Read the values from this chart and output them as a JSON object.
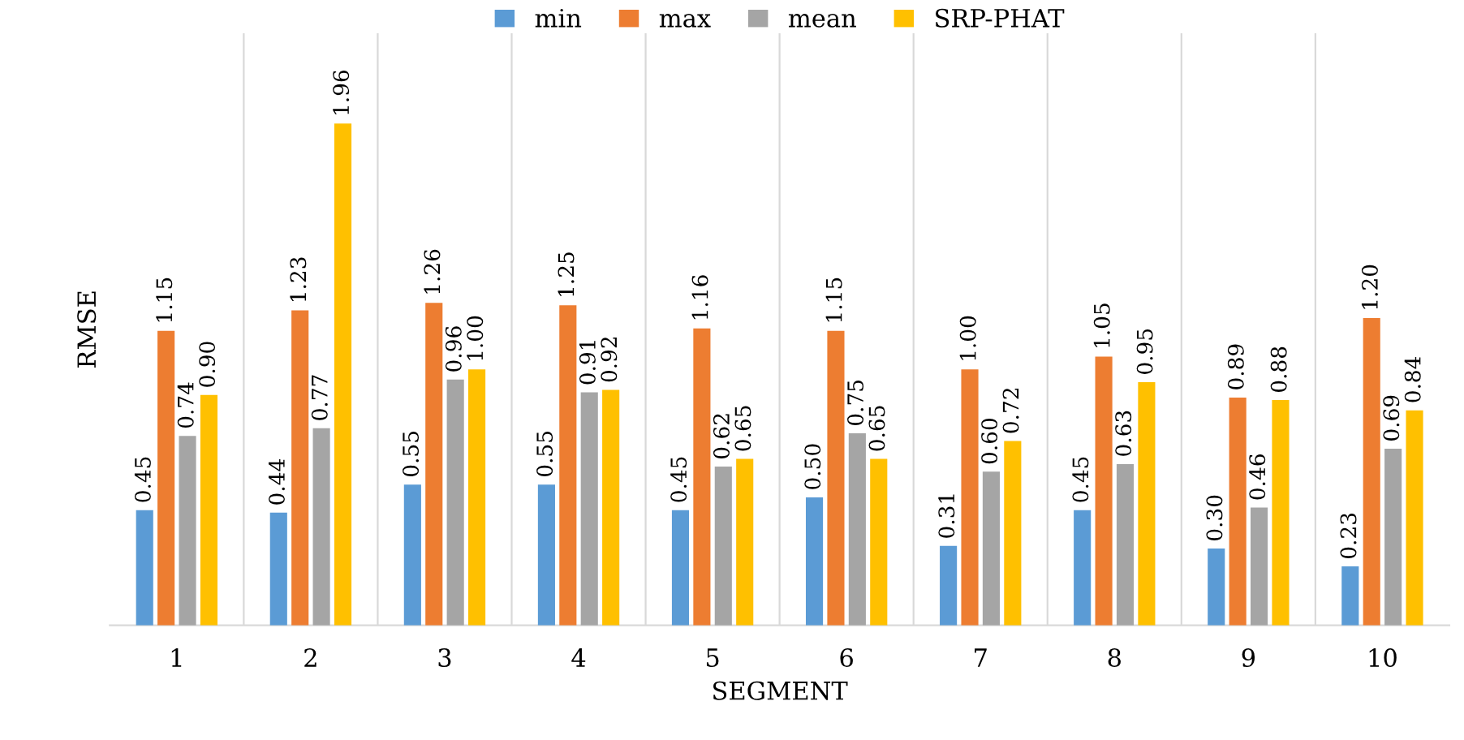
{
  "chart_data": {
    "type": "bar",
    "xlabel": "SEGMENT",
    "ylabel": "RMSE",
    "categories": [
      "1",
      "2",
      "3",
      "4",
      "5",
      "6",
      "7",
      "8",
      "9",
      "10"
    ],
    "series": [
      {
        "name": "min",
        "color": "#5b9bd5",
        "values": [
          0.45,
          0.44,
          0.55,
          0.55,
          0.45,
          0.5,
          0.31,
          0.45,
          0.3,
          0.23
        ],
        "value_labels": [
          "0.45",
          "0.44",
          "0.55",
          "0.55",
          "0.45",
          "0.50",
          "0.31",
          "0.45",
          "0.30",
          "0.23"
        ]
      },
      {
        "name": "max",
        "color": "#ed7d31",
        "values": [
          1.15,
          1.23,
          1.26,
          1.25,
          1.16,
          1.15,
          1.0,
          1.05,
          0.89,
          1.2
        ],
        "value_labels": [
          "1.15",
          "1.23",
          "1.26",
          "1.25",
          "1.16",
          "1.15",
          "1.00",
          "1.05",
          "0.89",
          "1.20"
        ]
      },
      {
        "name": "mean",
        "color": "#a5a5a5",
        "values": [
          0.74,
          0.77,
          0.96,
          0.91,
          0.62,
          0.75,
          0.6,
          0.63,
          0.46,
          0.69
        ],
        "value_labels": [
          "0.74",
          "0.77",
          "0.96",
          "0.91",
          "0.62",
          "0.75",
          "0.60",
          "0.63",
          "0.46",
          "0.69"
        ]
      },
      {
        "name": "SRP-PHAT",
        "color": "#ffc000",
        "values": [
          0.9,
          1.96,
          1.0,
          0.92,
          0.65,
          0.65,
          0.72,
          0.95,
          0.88,
          0.84
        ],
        "value_labels": [
          "0.90",
          "1.96",
          "1.00",
          "0.92",
          "0.65",
          "0.65",
          "0.72",
          "0.95",
          "0.88",
          "0.84"
        ]
      }
    ],
    "grid": "x",
    "legend": "top"
  }
}
